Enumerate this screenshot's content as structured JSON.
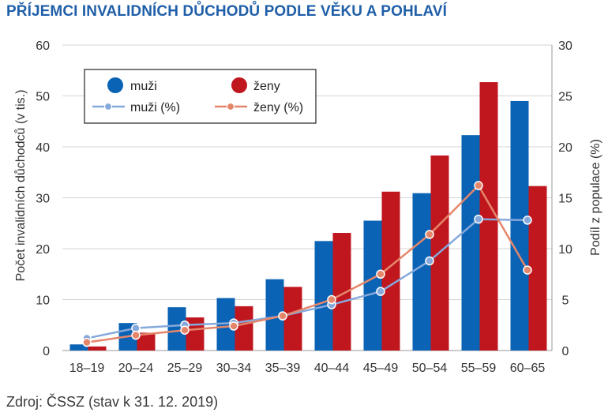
{
  "title": "PŘÍJEMCI INVALIDNÍCH DŮCHODŮ PODLE VĚKU A POHLAVÍ",
  "source": "Zdroj: ČSSZ (stav k 31. 12. 2019)",
  "colors": {
    "title": "#1f5fa8",
    "muzi_bar": "#0a63b5",
    "zeny_bar": "#c0171f",
    "muzi_line": "#86a9dc",
    "zeny_line": "#e5866a",
    "grid": "#d4d4d4"
  },
  "chart_data": {
    "type": "bar",
    "categories": [
      "18–19",
      "20–24",
      "25–29",
      "30–34",
      "35–39",
      "40–44",
      "45–49",
      "50–54",
      "55–59",
      "60–65"
    ],
    "ylabel": "Počet invalidních důchodců (v tis.)",
    "y2label": "Podíl z populace (%)",
    "ylim": [
      0,
      60
    ],
    "y2lim": [
      0,
      30
    ],
    "yticks": [
      0,
      10,
      20,
      30,
      40,
      50,
      60
    ],
    "y2ticks": [
      0,
      5,
      10,
      15,
      20,
      25,
      30
    ],
    "grid": true,
    "legend_position": "top-left",
    "series": [
      {
        "name": "muži",
        "kind": "bar",
        "axis": "left",
        "values": [
          1.2,
          5.4,
          8.5,
          10.3,
          14.0,
          21.5,
          25.5,
          30.9,
          42.3,
          49.0
        ]
      },
      {
        "name": "ženy",
        "kind": "bar",
        "axis": "left",
        "values": [
          0.8,
          3.5,
          6.5,
          8.7,
          12.5,
          23.1,
          31.2,
          38.3,
          52.7,
          32.3
        ]
      },
      {
        "name": "muži (%)",
        "kind": "line",
        "axis": "right",
        "values": [
          1.2,
          2.2,
          2.5,
          2.7,
          3.4,
          4.5,
          5.8,
          8.8,
          12.9,
          12.8
        ]
      },
      {
        "name": "ženy (%)",
        "kind": "line",
        "axis": "right",
        "values": [
          0.8,
          1.5,
          2.0,
          2.4,
          3.4,
          5.0,
          7.5,
          11.4,
          16.2,
          7.9
        ]
      }
    ]
  }
}
